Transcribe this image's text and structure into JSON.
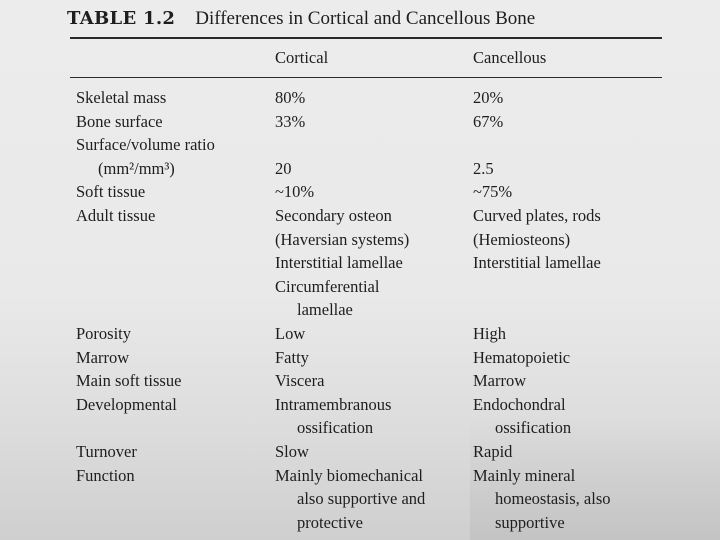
{
  "table": {
    "number": "TABLE 1.2",
    "title": "Differences in Cortical and Cancellous Bone",
    "headers": [
      "",
      "Cortical",
      "Cancellous"
    ],
    "rows": [
      {
        "label": "Skeletal mass",
        "cortical": "80%",
        "cancellous": "20%"
      },
      {
        "label": "Bone surface",
        "cortical": "33%",
        "cancellous": "67%"
      },
      {
        "label": "Surface/volume ratio",
        "cortical": "",
        "cancellous": ""
      },
      {
        "label": "(mm²/mm³)",
        "cortical": "20",
        "cancellous": "2.5"
      },
      {
        "label": "Soft tissue",
        "cortical": "~10%",
        "cancellous": "~75%"
      },
      {
        "label": "Adult tissue",
        "cortical": "Secondary osteon",
        "cancellous": "Curved plates, rods"
      },
      {
        "label": "",
        "cortical": "(Haversian systems)",
        "cancellous": "(Hemiosteons)"
      },
      {
        "label": "",
        "cortical": "Interstitial lamellae",
        "cancellous": "Interstitial lamellae"
      },
      {
        "label": "",
        "cortical": "Circumferential",
        "cancellous": ""
      },
      {
        "label": "",
        "cortical": "lamellae",
        "cancellous": ""
      },
      {
        "label": "Porosity",
        "cortical": "Low",
        "cancellous": "High"
      },
      {
        "label": "Marrow",
        "cortical": "Fatty",
        "cancellous": "Hematopoietic"
      },
      {
        "label": "Main soft tissue",
        "cortical": "Viscera",
        "cancellous": "Marrow"
      },
      {
        "label": "Developmental",
        "cortical": "Intramembranous",
        "cancellous": "Endochondral"
      },
      {
        "label": "",
        "cortical": "ossification",
        "cancellous": "ossification"
      },
      {
        "label": "Turnover",
        "cortical": "Slow",
        "cancellous": "Rapid"
      },
      {
        "label": "Function",
        "cortical": "Mainly biomechanical",
        "cancellous": "Mainly mineral"
      },
      {
        "label": "",
        "cortical": "also supportive and",
        "cancellous": "homeostasis, also"
      },
      {
        "label": "",
        "cortical": "protective",
        "cancellous": "supportive"
      }
    ]
  }
}
